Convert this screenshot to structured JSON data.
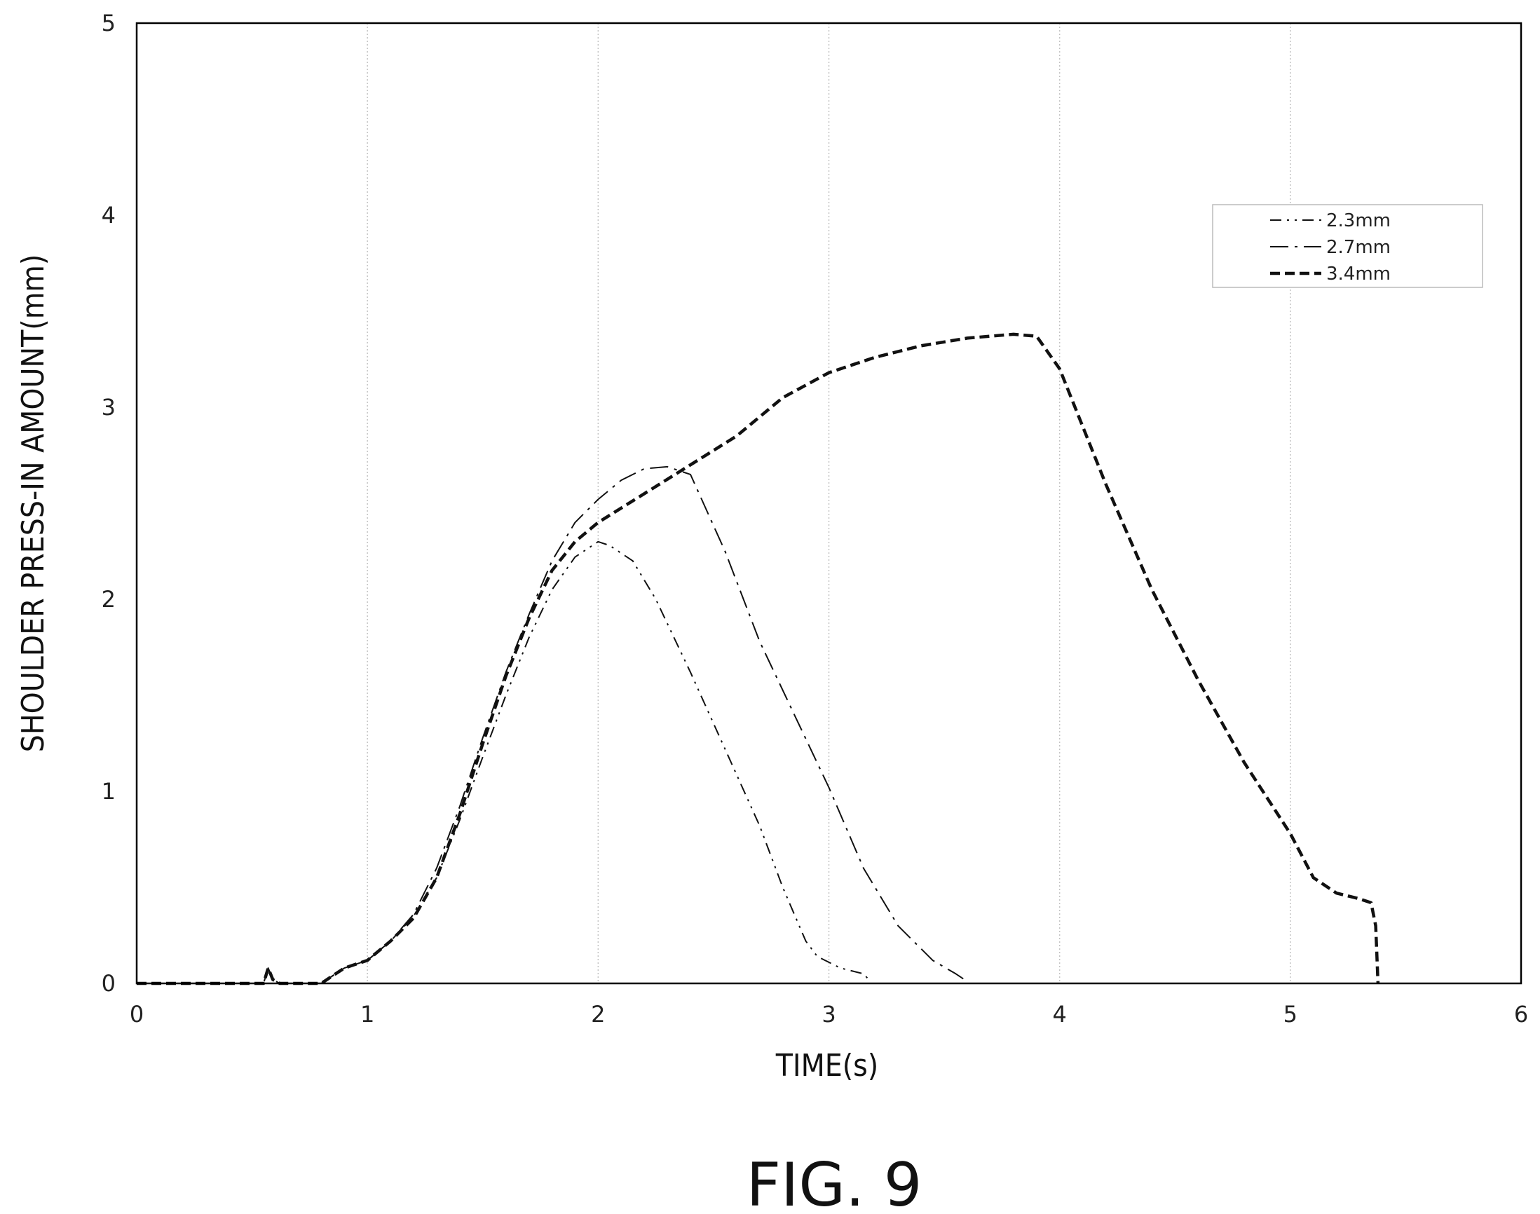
{
  "figure_label": "FIG. 9",
  "chart_data": {
    "type": "line",
    "xlabel": "TIME(s)",
    "ylabel": "SHOULDER PRESS-IN AMOUNT(mm)",
    "xlim": [
      0,
      6
    ],
    "ylim": [
      0,
      5
    ],
    "xticks": [
      0,
      1,
      2,
      3,
      4,
      5,
      6
    ],
    "yticks": [
      0,
      1,
      2,
      3,
      4,
      5
    ],
    "grid": "vertical",
    "legend_position": "top-right",
    "series": [
      {
        "name": "2.3mm",
        "style": "dash-dot-dot",
        "x": [
          0.0,
          0.55,
          0.57,
          0.59,
          0.62,
          0.8,
          0.85,
          0.9,
          1.0,
          1.1,
          1.2,
          1.3,
          1.4,
          1.5,
          1.6,
          1.7,
          1.8,
          1.9,
          2.0,
          2.05,
          2.15,
          2.25,
          2.4,
          2.55,
          2.7,
          2.8,
          2.9,
          2.95,
          3.05,
          3.15,
          3.18
        ],
        "y": [
          0.0,
          0.0,
          0.08,
          0.02,
          0.0,
          0.0,
          0.04,
          0.08,
          0.12,
          0.22,
          0.35,
          0.55,
          0.85,
          1.18,
          1.5,
          1.8,
          2.05,
          2.22,
          2.3,
          2.28,
          2.2,
          2.0,
          1.62,
          1.22,
          0.82,
          0.5,
          0.22,
          0.14,
          0.08,
          0.05,
          0.01
        ]
      },
      {
        "name": "2.7mm",
        "style": "dash-dot",
        "x": [
          0.0,
          0.55,
          0.57,
          0.59,
          0.62,
          0.8,
          0.85,
          0.9,
          1.0,
          1.1,
          1.2,
          1.3,
          1.4,
          1.5,
          1.6,
          1.7,
          1.8,
          1.9,
          2.0,
          2.1,
          2.2,
          2.3,
          2.4,
          2.55,
          2.7,
          2.85,
          3.0,
          3.15,
          3.3,
          3.45,
          3.55,
          3.6
        ],
        "y": [
          0.0,
          0.0,
          0.08,
          0.02,
          0.0,
          0.0,
          0.04,
          0.08,
          0.12,
          0.22,
          0.36,
          0.6,
          0.92,
          1.28,
          1.62,
          1.92,
          2.2,
          2.4,
          2.52,
          2.62,
          2.68,
          2.69,
          2.65,
          2.25,
          1.78,
          1.4,
          1.02,
          0.6,
          0.3,
          0.12,
          0.05,
          0.01
        ]
      },
      {
        "name": "3.4mm",
        "style": "dashed",
        "x": [
          0.0,
          0.55,
          0.57,
          0.59,
          0.62,
          0.8,
          0.85,
          0.9,
          1.0,
          1.1,
          1.2,
          1.3,
          1.4,
          1.5,
          1.6,
          1.7,
          1.8,
          1.9,
          2.0,
          2.2,
          2.4,
          2.6,
          2.8,
          3.0,
          3.2,
          3.4,
          3.6,
          3.8,
          3.9,
          4.0,
          4.2,
          4.4,
          4.6,
          4.8,
          5.0,
          5.1,
          5.2,
          5.3,
          5.35,
          5.37,
          5.38
        ],
        "y": [
          0.0,
          0.0,
          0.08,
          0.02,
          0.0,
          0.0,
          0.04,
          0.08,
          0.12,
          0.22,
          0.34,
          0.55,
          0.88,
          1.25,
          1.6,
          1.9,
          2.15,
          2.3,
          2.4,
          2.55,
          2.7,
          2.85,
          3.05,
          3.18,
          3.26,
          3.32,
          3.36,
          3.38,
          3.37,
          3.2,
          2.6,
          2.05,
          1.58,
          1.15,
          0.78,
          0.55,
          0.47,
          0.44,
          0.42,
          0.3,
          0.0
        ]
      }
    ]
  }
}
